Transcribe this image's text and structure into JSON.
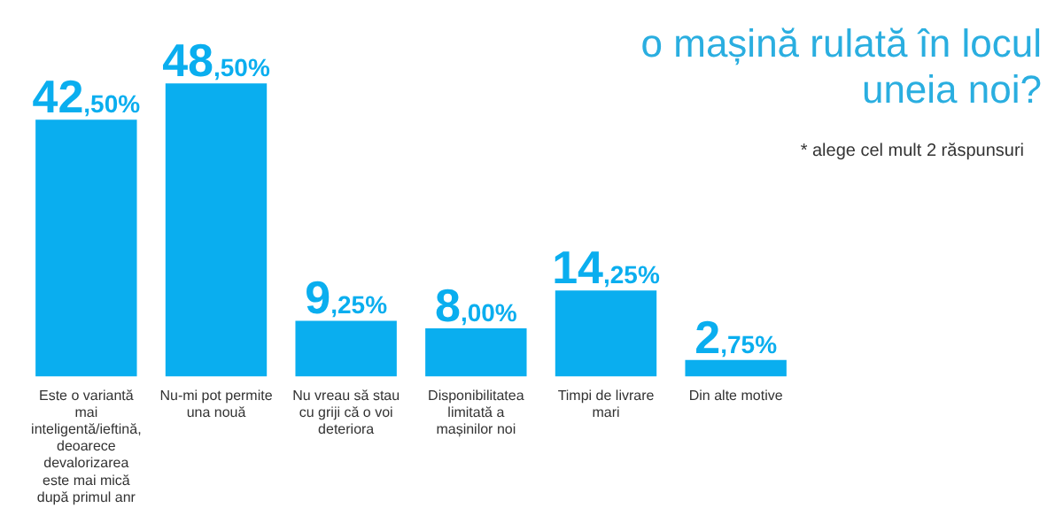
{
  "chart_data": {
    "type": "bar",
    "title": "o mașină rulată în locul uneia noi?",
    "annotations": [
      "* alege cel mult 2 răspunsuri"
    ],
    "categories": [
      "Este o variantă mai inteligentă/ieftină, deoarece devalorizarea este mai mică după primul anr",
      "Nu-mi pot permite una nouă",
      "Nu vreau să stau cu griji că o voi deteriora",
      "Disponibilitatea limitată a mașinilor noi",
      "Timpi de livrare mari",
      "Din alte motive"
    ],
    "values": [
      42.5,
      48.5,
      9.25,
      8.0,
      14.25,
      2.75
    ],
    "value_labels": [
      "42,50%",
      "48,50%",
      "9,25%",
      "8,00%",
      "14,25%",
      "2,75%"
    ],
    "color": "#0aaeef",
    "tick_labels": "x",
    "grid": false,
    "legend": false
  }
}
